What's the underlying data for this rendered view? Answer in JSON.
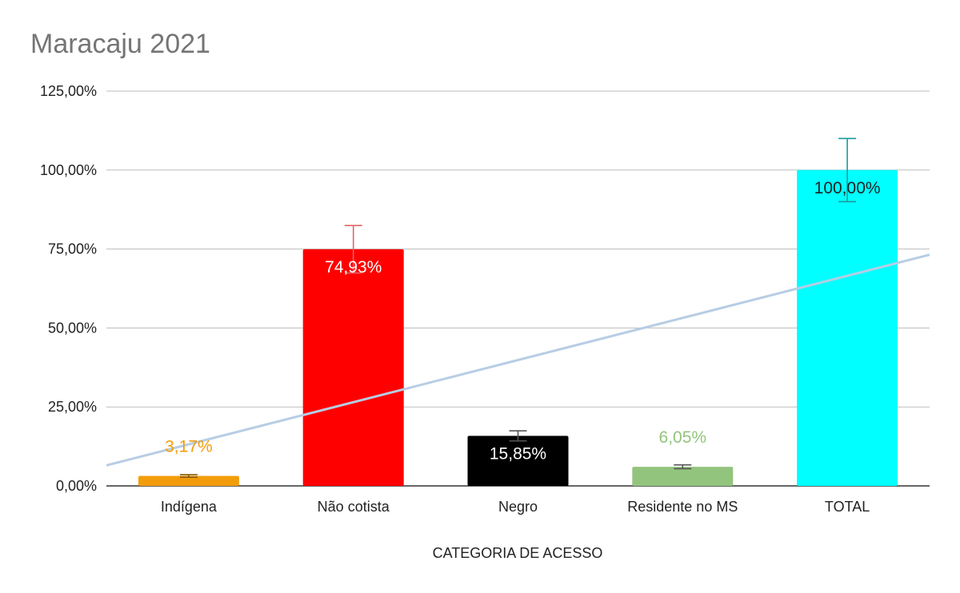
{
  "chart_data": {
    "type": "bar",
    "title": "Maracaju 2021",
    "xlabel": "CATEGORIA DE ACESSO",
    "ylabel": "",
    "ylim": [
      0,
      125
    ],
    "yticks": [
      0,
      25,
      50,
      75,
      100,
      125
    ],
    "ytick_labels": [
      "0,00%",
      "25,00%",
      "50,00%",
      "75,00%",
      "100,00%",
      "125,00%"
    ],
    "grid": true,
    "categories": [
      "Indígena",
      "Não cotista",
      "Negro",
      "Residente no MS",
      "TOTAL"
    ],
    "values": [
      3.17,
      74.93,
      15.85,
      6.05,
      100.0
    ],
    "data_labels": [
      "3,17%",
      "74,93%",
      "15,85%",
      "6,05%",
      "100,00%"
    ],
    "error_bars": [
      0.4,
      7.5,
      1.6,
      0.6,
      10.0
    ],
    "colors": [
      "#f39c0b",
      "#ff0000",
      "#000000",
      "#93c47d",
      "#00ffff"
    ],
    "error_bar_colors": [
      "#8a5a00",
      "#e06666",
      "#555555",
      "#555555",
      "#1a9b9b"
    ],
    "label_colors": [
      "#f39c0b",
      "#ffffff",
      "#ffffff",
      "#93c47d",
      "#222222"
    ],
    "label_position": [
      "above",
      "inside",
      "inside",
      "above",
      "inside"
    ],
    "trendline": {
      "type": "linear",
      "color": "#b7cde4",
      "start": 6.5,
      "end": 73.2
    }
  }
}
